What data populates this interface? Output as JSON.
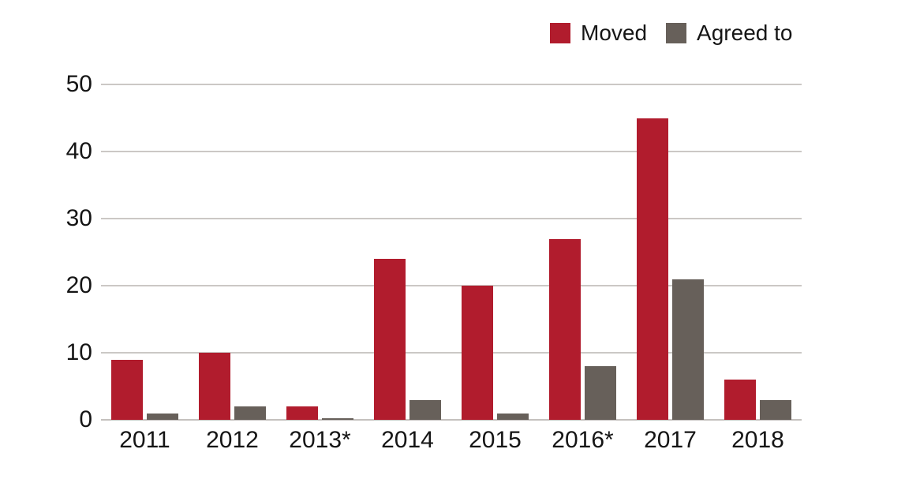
{
  "chart_data": {
    "type": "bar",
    "title": "",
    "categories": [
      "2011",
      "2012",
      "2013*",
      "2014",
      "2015",
      "2016*",
      "2017",
      "2018"
    ],
    "series": [
      {
        "name": "Moved",
        "color": "#b11c2d",
        "values": [
          9,
          10,
          2,
          24,
          20,
          27,
          45,
          6
        ]
      },
      {
        "name": "Agreed to",
        "color": "#67605a",
        "values": [
          1,
          2,
          0,
          3,
          1,
          8,
          21,
          3
        ]
      }
    ],
    "ylim": [
      0,
      50
    ],
    "yticks": [
      0,
      10,
      20,
      30,
      40,
      50
    ],
    "xlabel": "",
    "ylabel": "",
    "grid": "horizontal",
    "gridline_color": "#cbc8c5",
    "legend_position": "top-right"
  }
}
